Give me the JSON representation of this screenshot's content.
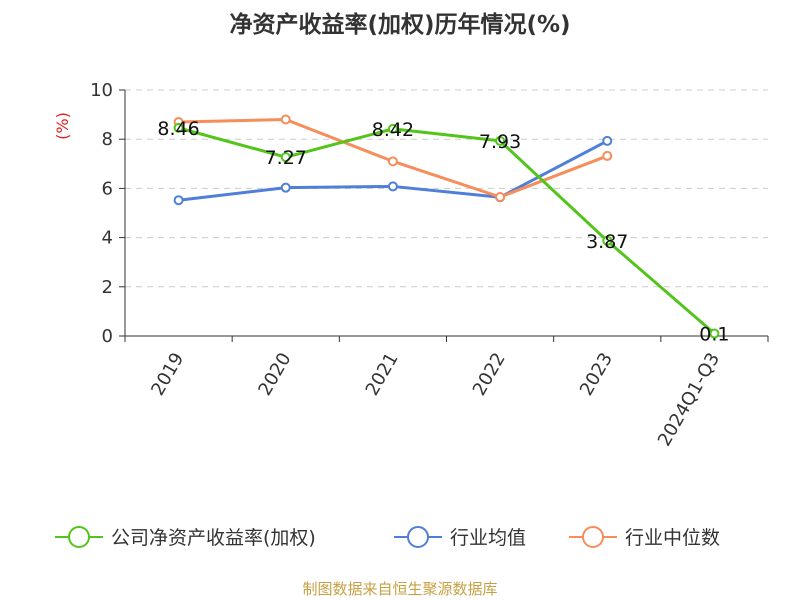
{
  "chart_data": {
    "type": "line",
    "title": "净资产收益率(加权)历年情况(%)",
    "ylabel": "(%)",
    "xlabel": "",
    "ylim": [
      0,
      10
    ],
    "yticks": [
      "0",
      "2",
      "4",
      "6",
      "8",
      "10"
    ],
    "categories": [
      "2019",
      "2020",
      "2021",
      "2022",
      "2023",
      "2024Q1-Q3"
    ],
    "grid": true,
    "legend_position": "bottom",
    "series": [
      {
        "name": "公司净资产收益率(加权)",
        "color": "#52c41a",
        "values": [
          8.46,
          7.27,
          8.42,
          7.93,
          3.87,
          0.1
        ],
        "labels": [
          "8.46",
          "7.27",
          "8.42",
          "7.93",
          "3.87",
          "0.1"
        ]
      },
      {
        "name": "行业均值",
        "color": "#4f7fd9",
        "values": [
          5.52,
          6.03,
          6.08,
          5.64,
          7.93,
          null
        ]
      },
      {
        "name": "行业中位数",
        "color": "#f78d5a",
        "values": [
          8.7,
          8.8,
          7.1,
          5.65,
          7.32,
          null
        ]
      }
    ],
    "source": "制图数据来自恒生聚源数据库"
  }
}
